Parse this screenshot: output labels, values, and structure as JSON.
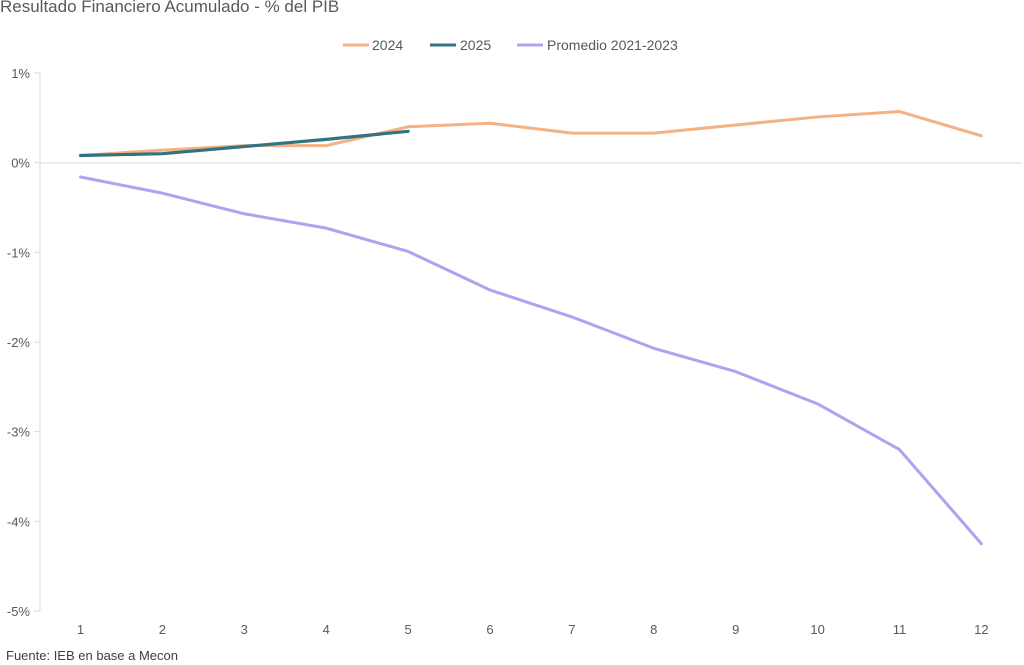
{
  "chart_data": {
    "type": "line",
    "title": "Resultado Financiero Acumulado - % del PIB",
    "source": "Fuente: IEB en base a Mecon",
    "x": [
      1,
      2,
      3,
      4,
      5,
      6,
      7,
      8,
      9,
      10,
      11,
      12
    ],
    "ylim": [
      -5,
      1
    ],
    "y_ticks": [
      1,
      0,
      -1,
      -2,
      -3,
      -4,
      -5
    ],
    "y_tick_labels": [
      "1%",
      "0%",
      "-1%",
      "-2%",
      "-3%",
      "-4%",
      "-5%"
    ],
    "legend_position": "top",
    "grid": false,
    "series": [
      {
        "name": "2024",
        "color": "#F4B183",
        "values": [
          0.08,
          0.14,
          0.19,
          0.19,
          0.4,
          0.44,
          0.33,
          0.33,
          0.42,
          0.51,
          0.57,
          0.3
        ]
      },
      {
        "name": "2025",
        "color": "#31737F",
        "values": [
          0.08,
          0.1,
          0.18,
          0.26,
          0.35,
          null,
          null,
          null,
          null,
          null,
          null,
          null
        ]
      },
      {
        "name": "Promedio 2021-2023",
        "color": "#B4A0F0",
        "values": [
          -0.16,
          -0.34,
          -0.57,
          -0.73,
          -0.99,
          -1.42,
          -1.72,
          -2.07,
          -2.33,
          -2.69,
          -3.2,
          -4.25
        ]
      }
    ]
  }
}
